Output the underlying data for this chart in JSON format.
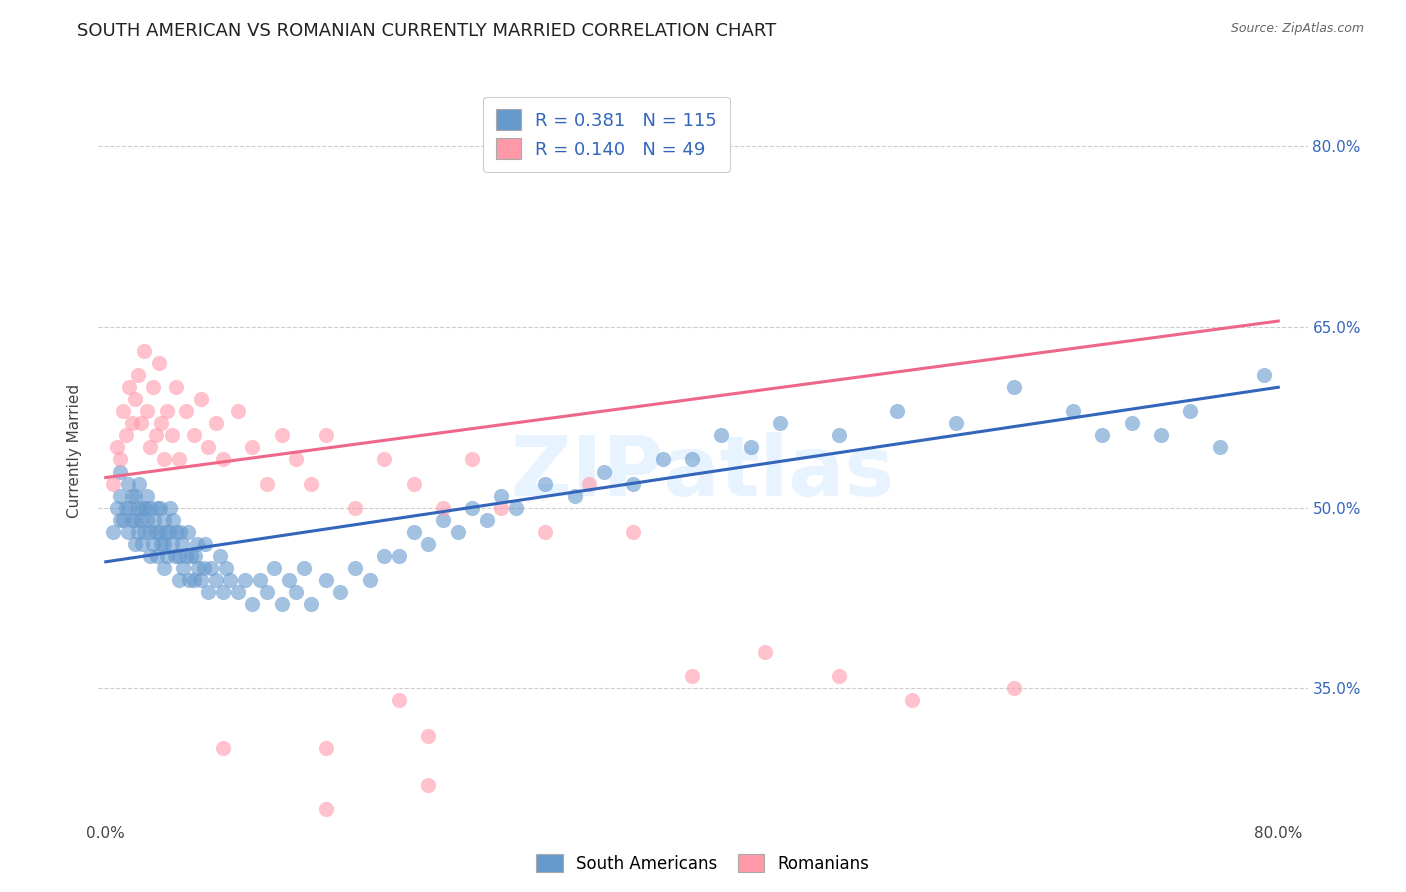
{
  "title": "SOUTH AMERICAN VS ROMANIAN CURRENTLY MARRIED CORRELATION CHART",
  "source": "Source: ZipAtlas.com",
  "ylabel": "Currently Married",
  "xlim": [
    -0.005,
    0.82
  ],
  "ylim": [
    0.24,
    0.855
  ],
  "yticks": [
    0.35,
    0.5,
    0.65,
    0.8
  ],
  "ytick_labels": [
    "35.0%",
    "50.0%",
    "65.0%",
    "80.0%"
  ],
  "xticks": [
    0.0,
    0.2,
    0.4,
    0.6,
    0.8
  ],
  "blue_R": "0.381",
  "blue_N": "115",
  "pink_R": "0.140",
  "pink_N": "49",
  "blue_color": "#6699CC",
  "pink_color": "#FF99AA",
  "blue_line_color": "#3366BB",
  "pink_line_color": "#EE6688",
  "text_blue": "#3366BB",
  "blue_trendline": [
    0.455,
    0.6
  ],
  "pink_trendline": [
    0.525,
    0.655
  ],
  "title_fontsize": 13,
  "legend_fontsize": 13,
  "blue_scatter_x": [
    0.005,
    0.008,
    0.01,
    0.01,
    0.01,
    0.012,
    0.014,
    0.015,
    0.015,
    0.016,
    0.018,
    0.018,
    0.02,
    0.02,
    0.02,
    0.022,
    0.022,
    0.023,
    0.024,
    0.025,
    0.025,
    0.026,
    0.027,
    0.028,
    0.028,
    0.03,
    0.03,
    0.03,
    0.032,
    0.033,
    0.034,
    0.035,
    0.035,
    0.036,
    0.037,
    0.038,
    0.04,
    0.04,
    0.04,
    0.041,
    0.042,
    0.043,
    0.044,
    0.045,
    0.046,
    0.047,
    0.048,
    0.05,
    0.05,
    0.051,
    0.052,
    0.053,
    0.055,
    0.056,
    0.057,
    0.058,
    0.06,
    0.061,
    0.062,
    0.063,
    0.065,
    0.067,
    0.068,
    0.07,
    0.072,
    0.075,
    0.078,
    0.08,
    0.082,
    0.085,
    0.09,
    0.095,
    0.1,
    0.105,
    0.11,
    0.115,
    0.12,
    0.125,
    0.13,
    0.135,
    0.14,
    0.15,
    0.16,
    0.17,
    0.18,
    0.19,
    0.2,
    0.21,
    0.22,
    0.23,
    0.24,
    0.25,
    0.26,
    0.27,
    0.28,
    0.3,
    0.32,
    0.34,
    0.36,
    0.38,
    0.4,
    0.42,
    0.44,
    0.46,
    0.5,
    0.54,
    0.58,
    0.62,
    0.66,
    0.68,
    0.7,
    0.72,
    0.74,
    0.76,
    0.79
  ],
  "blue_scatter_y": [
    0.48,
    0.5,
    0.49,
    0.51,
    0.53,
    0.49,
    0.5,
    0.48,
    0.52,
    0.5,
    0.49,
    0.51,
    0.47,
    0.49,
    0.51,
    0.48,
    0.5,
    0.52,
    0.49,
    0.47,
    0.5,
    0.48,
    0.5,
    0.49,
    0.51,
    0.46,
    0.48,
    0.5,
    0.47,
    0.49,
    0.48,
    0.46,
    0.5,
    0.48,
    0.5,
    0.47,
    0.45,
    0.47,
    0.49,
    0.48,
    0.46,
    0.48,
    0.5,
    0.47,
    0.49,
    0.46,
    0.48,
    0.44,
    0.46,
    0.48,
    0.47,
    0.45,
    0.46,
    0.48,
    0.44,
    0.46,
    0.44,
    0.46,
    0.47,
    0.45,
    0.44,
    0.45,
    0.47,
    0.43,
    0.45,
    0.44,
    0.46,
    0.43,
    0.45,
    0.44,
    0.43,
    0.44,
    0.42,
    0.44,
    0.43,
    0.45,
    0.42,
    0.44,
    0.43,
    0.45,
    0.42,
    0.44,
    0.43,
    0.45,
    0.44,
    0.46,
    0.46,
    0.48,
    0.47,
    0.49,
    0.48,
    0.5,
    0.49,
    0.51,
    0.5,
    0.52,
    0.51,
    0.53,
    0.52,
    0.54,
    0.54,
    0.56,
    0.55,
    0.57,
    0.56,
    0.58,
    0.57,
    0.6,
    0.58,
    0.56,
    0.57,
    0.56,
    0.58,
    0.55,
    0.61
  ],
  "pink_scatter_x": [
    0.005,
    0.008,
    0.01,
    0.012,
    0.014,
    0.016,
    0.018,
    0.02,
    0.022,
    0.024,
    0.026,
    0.028,
    0.03,
    0.032,
    0.034,
    0.036,
    0.038,
    0.04,
    0.042,
    0.045,
    0.048,
    0.05,
    0.055,
    0.06,
    0.065,
    0.07,
    0.075,
    0.08,
    0.09,
    0.1,
    0.11,
    0.12,
    0.13,
    0.14,
    0.15,
    0.17,
    0.19,
    0.21,
    0.23,
    0.25,
    0.27,
    0.3,
    0.33,
    0.36,
    0.4,
    0.45,
    0.5,
    0.55,
    0.62
  ],
  "pink_scatter_y": [
    0.52,
    0.55,
    0.54,
    0.58,
    0.56,
    0.6,
    0.57,
    0.59,
    0.61,
    0.57,
    0.63,
    0.58,
    0.55,
    0.6,
    0.56,
    0.62,
    0.57,
    0.54,
    0.58,
    0.56,
    0.6,
    0.54,
    0.58,
    0.56,
    0.59,
    0.55,
    0.57,
    0.54,
    0.58,
    0.55,
    0.52,
    0.56,
    0.54,
    0.52,
    0.56,
    0.5,
    0.54,
    0.52,
    0.5,
    0.54,
    0.5,
    0.48,
    0.52,
    0.48,
    0.36,
    0.38,
    0.36,
    0.34,
    0.35
  ],
  "pink_outliers_x": [
    0.08,
    0.15,
    0.22,
    0.22,
    0.15,
    0.2
  ],
  "pink_outliers_y": [
    0.3,
    0.3,
    0.31,
    0.27,
    0.25,
    0.34
  ]
}
